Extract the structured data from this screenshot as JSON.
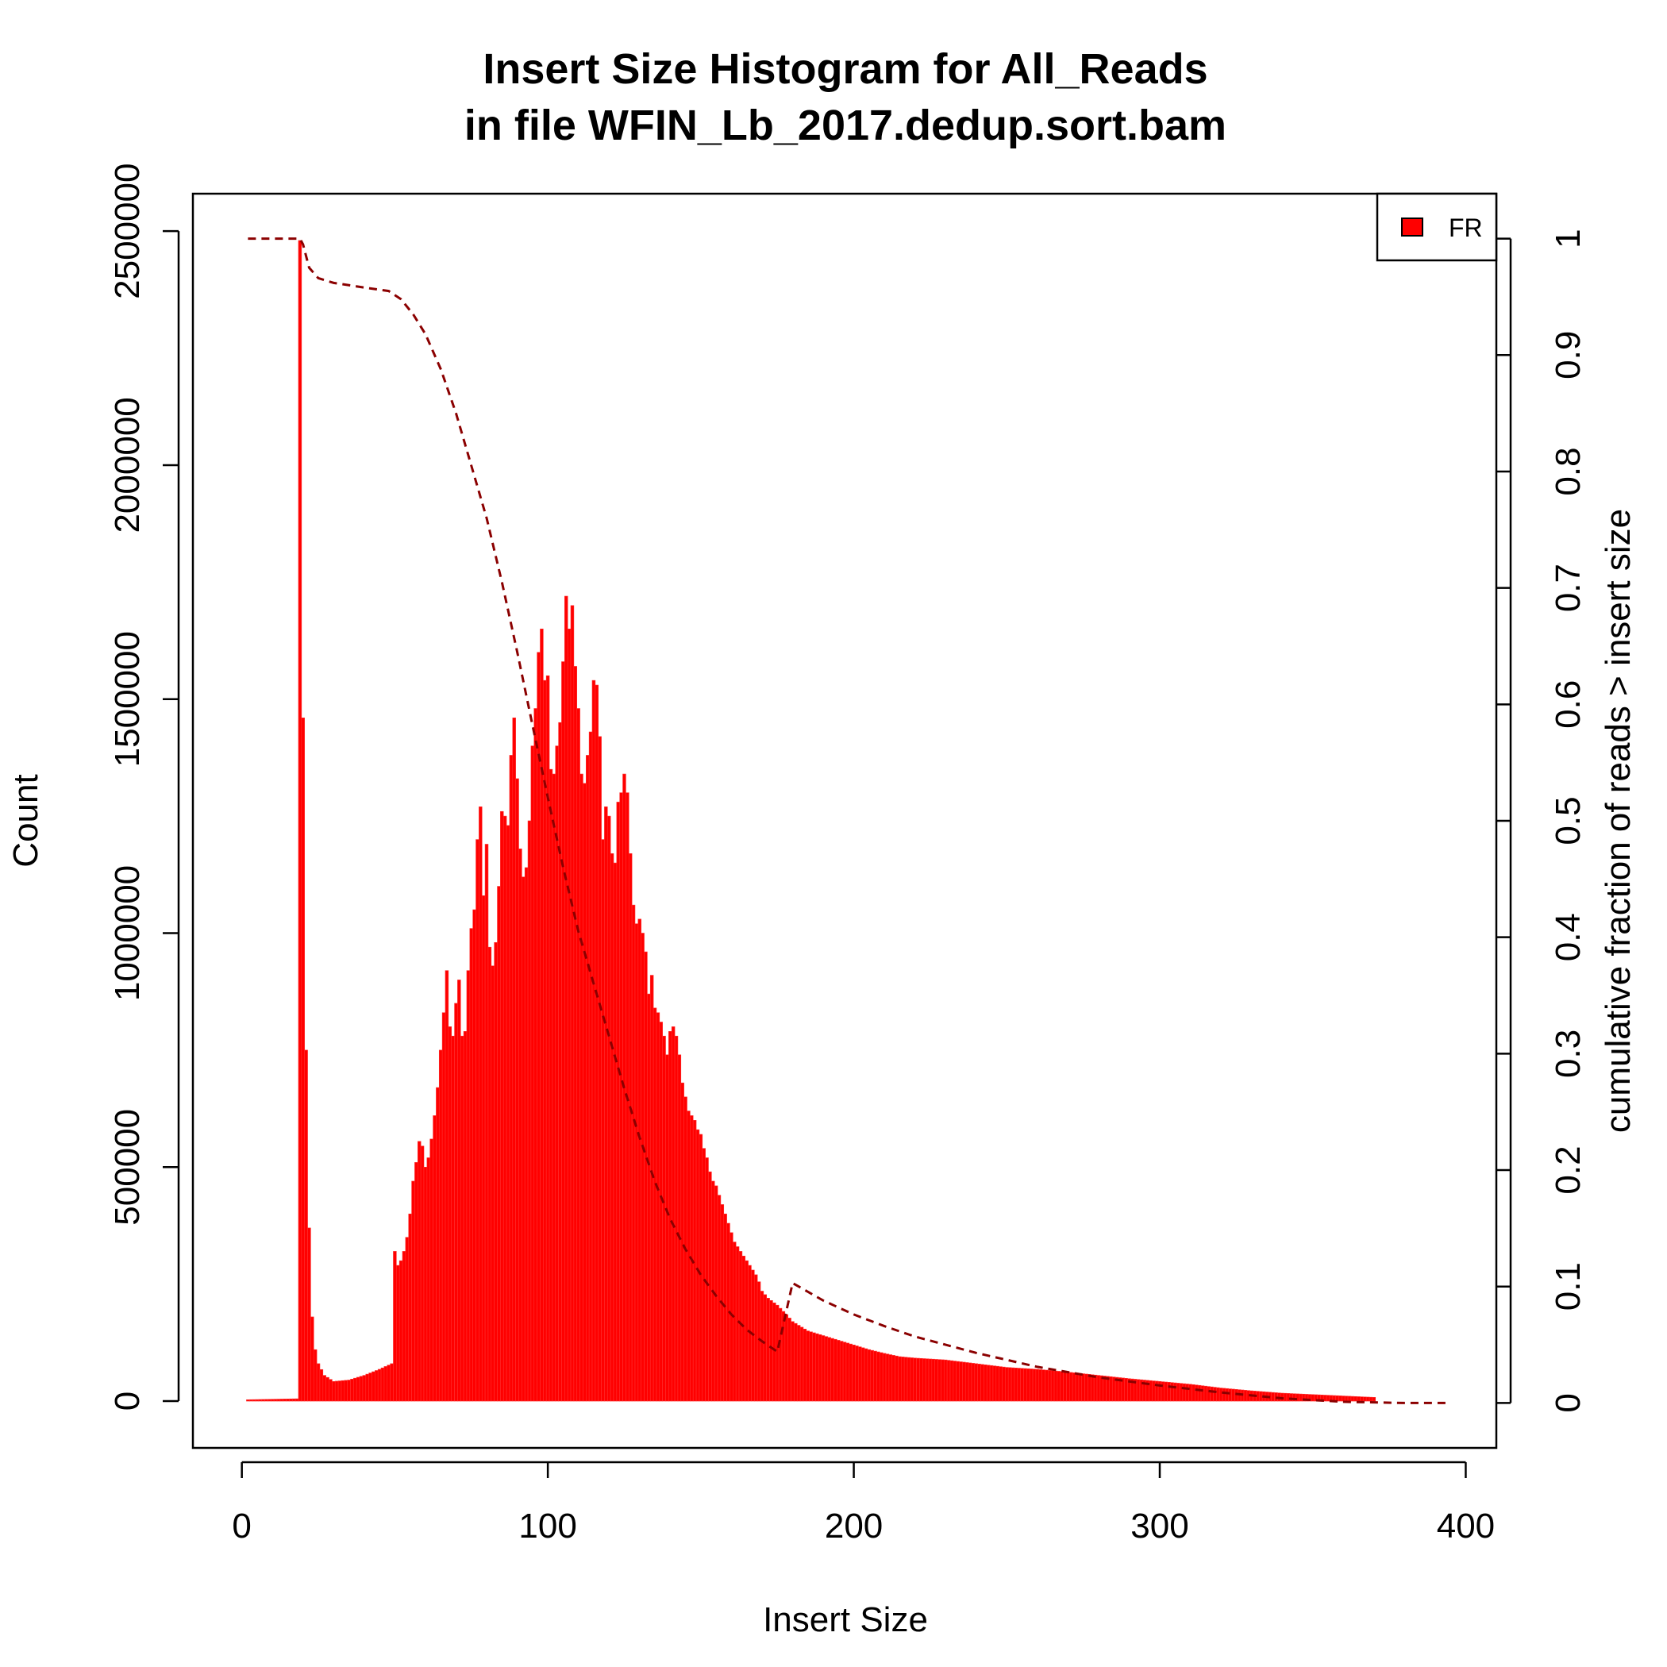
{
  "chart_data": {
    "type": "bar",
    "title_line1": "Insert Size Histogram for All_Reads",
    "title_line2": "in file WFIN_Lb_2017.dedup.sort.bam",
    "xlabel": "Insert Size",
    "ylabel": "Count",
    "y2label": "cumulative fraction of reads > insert size",
    "xlim": [
      -16,
      410
    ],
    "ylim": [
      -100000,
      2580000
    ],
    "y2lim": [
      -0.0386,
      1.0386
    ],
    "xticks": [
      0,
      100,
      200,
      300,
      400
    ],
    "yticks": [
      0,
      500000,
      1000000,
      1500000,
      2000000,
      2500000
    ],
    "y2ticks": [
      0,
      0.1,
      0.2,
      0.3,
      0.4,
      0.5,
      0.6,
      0.7,
      0.8,
      0.9,
      1
    ],
    "colors": {
      "bars": "#ff0000",
      "cumulative": "#8b0000",
      "frame": "#000000"
    },
    "legend": {
      "position": "top-right",
      "entries": [
        {
          "label": "FR",
          "color": "#ff0000"
        }
      ]
    },
    "histogram": {
      "series_name": "FR",
      "knots_x": [
        2,
        18,
        19,
        20,
        21,
        22,
        23,
        24,
        25,
        27,
        30,
        35,
        40,
        45,
        49,
        50,
        51,
        52,
        53,
        54,
        55,
        56,
        57,
        58,
        59,
        60,
        61,
        62,
        63,
        64,
        65,
        66,
        67,
        68,
        69,
        70,
        71,
        72,
        73,
        74,
        75,
        76,
        77,
        78,
        79,
        80,
        81,
        82,
        83,
        84,
        85,
        86,
        87,
        88,
        89,
        90,
        91,
        92,
        93,
        94,
        95,
        96,
        97,
        98,
        99,
        100,
        101,
        102,
        103,
        104,
        105,
        106,
        107,
        108,
        109,
        110,
        111,
        112,
        113,
        114,
        115,
        116,
        117,
        118,
        119,
        120,
        121,
        122,
        123,
        124,
        125,
        126,
        127,
        128,
        129,
        130,
        131,
        132,
        133,
        134,
        135,
        136,
        137,
        138,
        139,
        140,
        141,
        142,
        143,
        144,
        145,
        146,
        147,
        148,
        149,
        150,
        151,
        152,
        153,
        154,
        155,
        156,
        157,
        158,
        159,
        160,
        161,
        162,
        163,
        164,
        165,
        166,
        167,
        168,
        169,
        170,
        172,
        175,
        178,
        180,
        185,
        190,
        195,
        200,
        205,
        210,
        215,
        220,
        230,
        240,
        250,
        260,
        270,
        280,
        290,
        300,
        310,
        320,
        330,
        340,
        350,
        360,
        370,
        380,
        394
      ],
      "knots_y": [
        3000,
        5000,
        2480000,
        1460000,
        750000,
        370000,
        180000,
        110000,
        80000,
        55000,
        42000,
        45000,
        55000,
        68000,
        80000,
        320000,
        290000,
        300000,
        320000,
        350000,
        400000,
        470000,
        510000,
        555000,
        545000,
        500000,
        520000,
        560000,
        610000,
        670000,
        750000,
        830000,
        920000,
        800000,
        780000,
        850000,
        900000,
        780000,
        790000,
        920000,
        1010000,
        1050000,
        1200000,
        1270000,
        1080000,
        1190000,
        970000,
        930000,
        980000,
        1100000,
        1260000,
        1250000,
        1230000,
        1380000,
        1460000,
        1330000,
        1180000,
        1120000,
        1140000,
        1240000,
        1400000,
        1480000,
        1600000,
        1650000,
        1540000,
        1550000,
        1350000,
        1340000,
        1400000,
        1450000,
        1580000,
        1720000,
        1650000,
        1700000,
        1570000,
        1480000,
        1340000,
        1320000,
        1380000,
        1430000,
        1540000,
        1530000,
        1420000,
        1200000,
        1270000,
        1250000,
        1170000,
        1150000,
        1280000,
        1300000,
        1340000,
        1300000,
        1170000,
        1060000,
        1020000,
        1030000,
        1000000,
        960000,
        870000,
        910000,
        840000,
        830000,
        810000,
        780000,
        740000,
        790000,
        800000,
        780000,
        740000,
        680000,
        650000,
        620000,
        610000,
        600000,
        580000,
        570000,
        540000,
        520000,
        490000,
        470000,
        460000,
        440000,
        420000,
        400000,
        380000,
        360000,
        340000,
        330000,
        320000,
        310000,
        300000,
        290000,
        280000,
        270000,
        255000,
        235000,
        220000,
        205000,
        185000,
        170000,
        150000,
        140000,
        130000,
        120000,
        110000,
        102000,
        95000,
        92000,
        88000,
        80000,
        72000,
        68000,
        62000,
        55000,
        48000,
        42000,
        36000,
        28000,
        22000,
        17000,
        14000,
        11000,
        8000
      ]
    },
    "cumulative_fraction": {
      "x": [
        2,
        18,
        19,
        20,
        21,
        22,
        25,
        30,
        40,
        48,
        52,
        56,
        60,
        65,
        70,
        75,
        80,
        85,
        90,
        95,
        100,
        105,
        110,
        115,
        120,
        125,
        130,
        135,
        140,
        145,
        150,
        155,
        160,
        165,
        170,
        175,
        180,
        190,
        200,
        210,
        220,
        240,
        260,
        280,
        300,
        320,
        340,
        360,
        380,
        394
      ],
      "y": [
        1.0,
        1.0,
        1.0,
        0.995,
        0.985,
        0.975,
        0.966,
        0.962,
        0.958,
        0.955,
        0.948,
        0.935,
        0.918,
        0.888,
        0.85,
        0.805,
        0.76,
        0.705,
        0.645,
        0.582,
        0.52,
        0.46,
        0.405,
        0.36,
        0.315,
        0.27,
        0.228,
        0.19,
        0.158,
        0.132,
        0.11,
        0.092,
        0.076,
        0.063,
        0.053,
        0.044,
        0.103,
        0.088,
        0.076,
        0.066,
        0.057,
        0.043,
        0.031,
        0.022,
        0.015,
        0.009,
        0.004,
        0.001,
        0.0,
        0.0
      ]
    }
  }
}
